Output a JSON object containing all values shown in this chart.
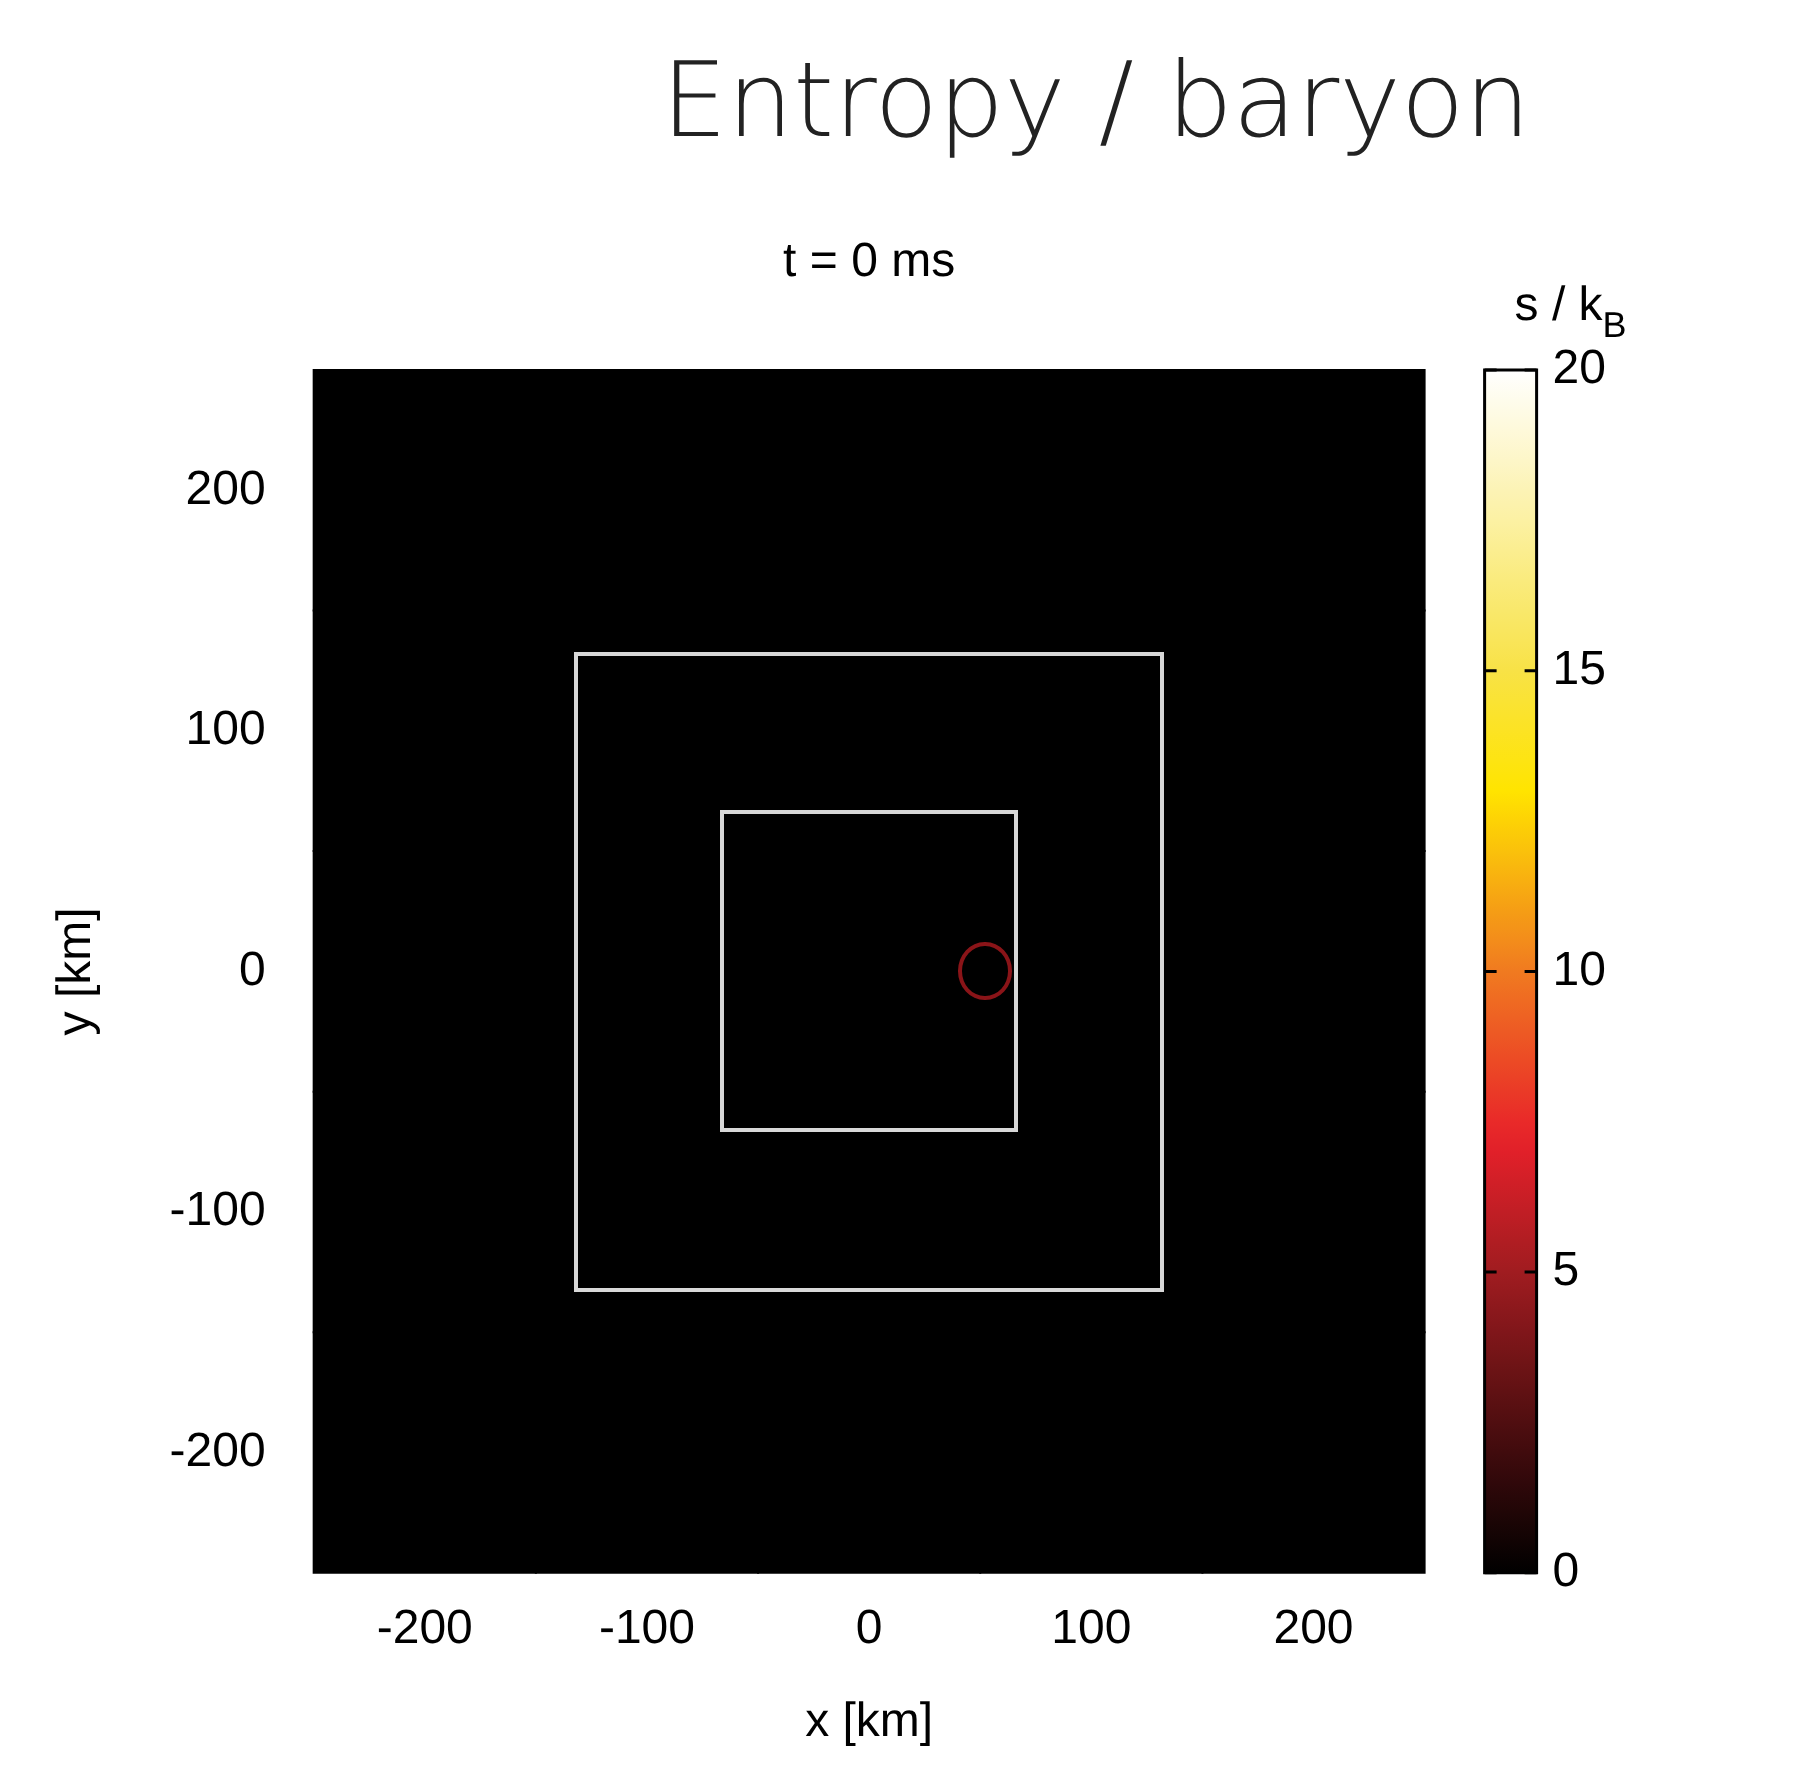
{
  "chart_data": {
    "type": "heatmap",
    "title": "Entropy / baryon",
    "subtitle": "t = 0 ms",
    "xlabel": "x [km]",
    "ylabel": "y [km]",
    "clabel": "s / k$_{B}$",
    "categories": [
      "-200",
      "-100",
      "0",
      "100",
      "200"
    ],
    "y_categories": [
      "200",
      "100",
      "0",
      "-100",
      "-200"
    ],
    "cells": [
      [
        0,
        0,
        0,
        0,
        0
      ],
      [
        0,
        0,
        0,
        0,
        0
      ],
      [
        0,
        0,
        0,
        0,
        0
      ],
      [
        0,
        0,
        0,
        0,
        0
      ],
      [
        0,
        0,
        0,
        0,
        0
      ]
    ],
    "clim": [
      0,
      20
    ],
    "cticks": [
      0,
      5,
      10,
      15,
      20
    ],
    "grid": false,
    "legend": false
  }
}
